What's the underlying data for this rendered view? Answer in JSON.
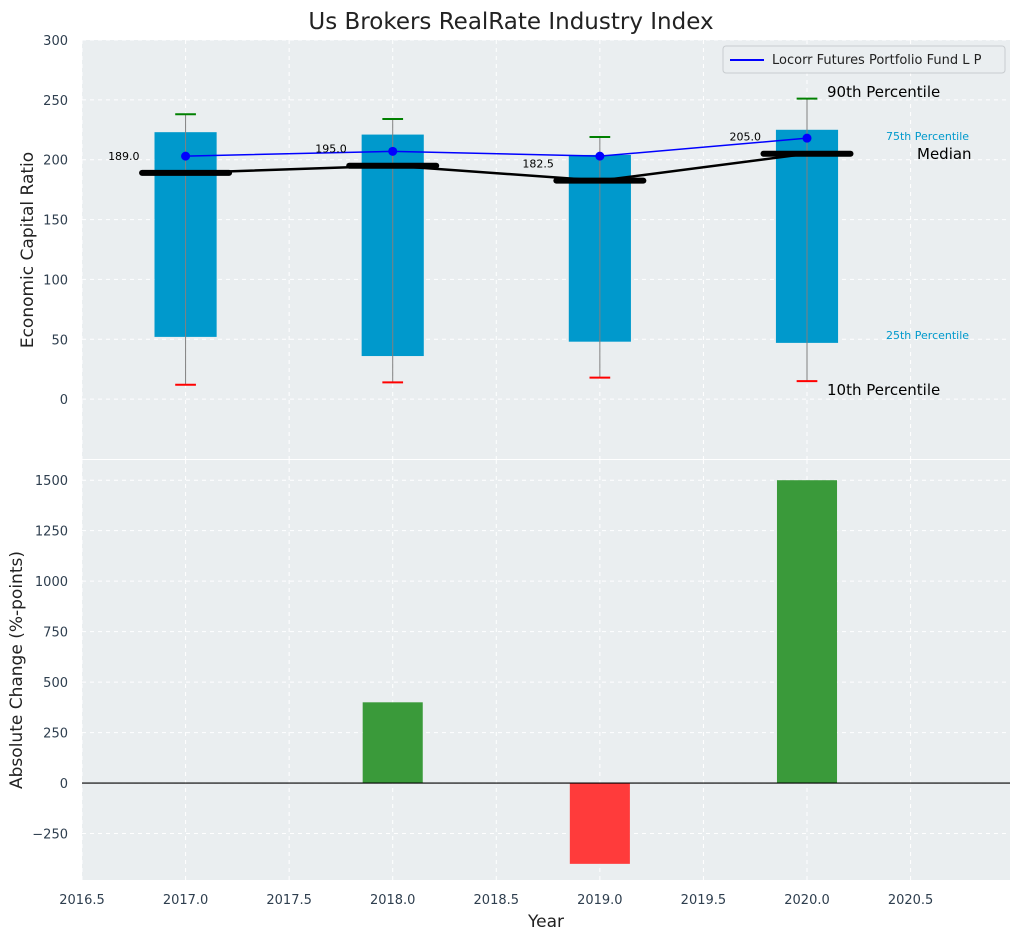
{
  "chart_data": [
    {
      "type": "bar",
      "title": "Us Brokers RealRate Industry Index",
      "ylabel": "Economic Capital Ratio",
      "ylim": [
        -50,
        300
      ],
      "yticks": [
        "0",
        "50",
        "100",
        "150",
        "200",
        "250",
        "300"
      ],
      "grid": true,
      "legend": {
        "position": "top-right",
        "entries": [
          "Locorr Futures Portfolio Fund L P"
        ]
      },
      "x": [
        2017,
        2018,
        2019,
        2020
      ],
      "percentiles": {
        "p10": [
          12,
          14,
          18,
          15
        ],
        "p25": [
          52,
          36,
          48,
          47
        ],
        "median": [
          189.0,
          195.0,
          182.5,
          205.0
        ],
        "p75": [
          223,
          221,
          204,
          225
        ],
        "p90": [
          238,
          234,
          219,
          251
        ]
      },
      "median_labels": [
        "189.0",
        "195.0",
        "182.5",
        "205.0"
      ],
      "series": [
        {
          "name": "Locorr Futures Portfolio Fund L P",
          "values": [
            203,
            207,
            203,
            218
          ],
          "color": "#0000ff"
        }
      ],
      "annotations": {
        "p90": "90th Percentile",
        "p75": "75th Percentile",
        "median": "Median",
        "p25": "25th Percentile",
        "p10": "10th Percentile"
      },
      "colors": {
        "box": "#0099cc",
        "median": "#000000",
        "p90_cap": "#008000",
        "p10_cap": "#ff0000",
        "annotation_quartile": "#0099cc"
      }
    },
    {
      "type": "bar",
      "ylabel": "Absolute Change (%-points)",
      "xlabel": "Year",
      "ylim": [
        -480,
        1600
      ],
      "yticks": [
        "−250",
        "0",
        "250",
        "500",
        "750",
        "1000",
        "1250",
        "1500"
      ],
      "xlim": [
        2016.5,
        2020.98
      ],
      "xticks": [
        "2016.5",
        "2017.0",
        "2017.5",
        "2018.0",
        "2018.5",
        "2019.0",
        "2019.5",
        "2020.0",
        "2020.5"
      ],
      "grid": true,
      "x": [
        2018,
        2019,
        2020
      ],
      "values": [
        400,
        -400,
        1500
      ],
      "colors": {
        "positive": "#3a9a3a",
        "negative": "#ff3b3b",
        "zero_line": "#000000"
      }
    }
  ]
}
